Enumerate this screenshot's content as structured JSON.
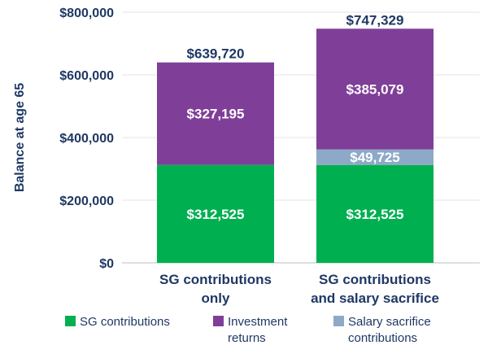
{
  "chart_data": {
    "type": "bar",
    "stacked": true,
    "title": "",
    "xlabel": "",
    "ylabel": "Balance at age 65",
    "ylim": [
      0,
      800000
    ],
    "yticks": [
      {
        "value": 0,
        "label": "$0"
      },
      {
        "value": 200000,
        "label": "$200,000"
      },
      {
        "value": 400000,
        "label": "$400,000"
      },
      {
        "value": 600000,
        "label": "$600,000"
      },
      {
        "value": 800000,
        "label": "$800,000"
      }
    ],
    "categories": [
      {
        "lines": [
          "SG contributions",
          "only"
        ]
      },
      {
        "lines": [
          "SG contributions",
          "and salary sacrifice"
        ]
      }
    ],
    "series": [
      {
        "name": "SG contributions",
        "color": "#00b050",
        "values": [
          312525,
          312525
        ],
        "labels": [
          "$312,525",
          "$312,525"
        ]
      },
      {
        "name": "Salary sacrifice contributions",
        "color": "#8ea9c8",
        "values": [
          0,
          49725
        ],
        "labels": [
          "",
          "$49,725"
        ]
      },
      {
        "name": "Investment returns",
        "color": "#7f3f98",
        "values": [
          327195,
          385079
        ],
        "labels": [
          "$327,195",
          "$385,079"
        ]
      }
    ],
    "totals": [
      {
        "value": 639720,
        "label": "$639,720"
      },
      {
        "value": 747329,
        "label": "$747,329"
      }
    ],
    "legend": [
      {
        "lines": [
          "SG contributions"
        ],
        "color": "#00b050"
      },
      {
        "lines": [
          "Investment",
          "returns"
        ],
        "color": "#7f3f98"
      },
      {
        "lines": [
          "Salary sacrifice",
          "contributions"
        ],
        "color": "#8ea9c8"
      }
    ],
    "grid": true,
    "legend_position": "bottom"
  }
}
